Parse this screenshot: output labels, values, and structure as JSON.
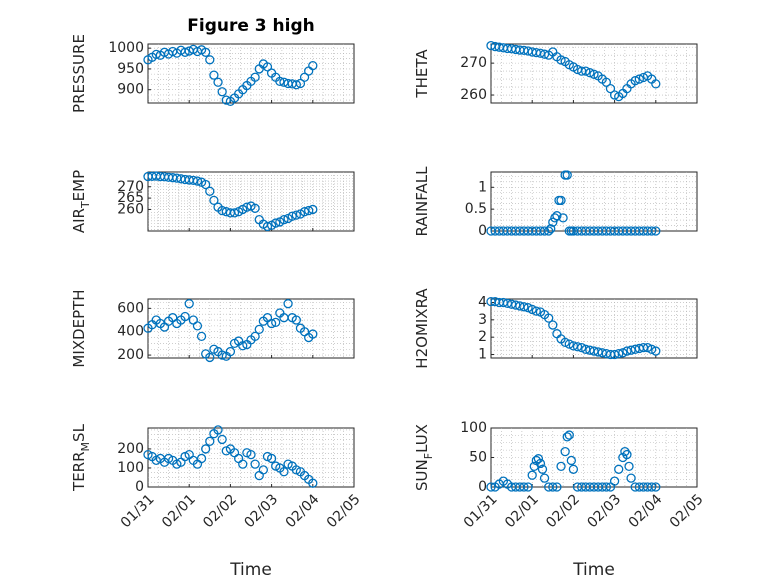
{
  "figure": {
    "title": "Figure 3 high",
    "marker_color": "#0072BD",
    "grid": true,
    "xlabel": "Time",
    "x_tick_labels": [
      "01/31",
      "02/01",
      "02/02",
      "02/03",
      "02/04",
      "02/05"
    ]
  },
  "chart_data": [
    {
      "type": "scatter",
      "ylabel": "PRESSURE",
      "xlim": [
        0,
        5
      ],
      "ylim": [
        868,
        1010
      ],
      "yticks": [
        900,
        950,
        1000
      ],
      "show_x_ticklabels": false,
      "x": [
        0,
        0.1,
        0.2,
        0.3,
        0.4,
        0.5,
        0.6,
        0.7,
        0.8,
        0.9,
        1.0,
        1.1,
        1.2,
        1.3,
        1.4,
        1.5,
        1.6,
        1.7,
        1.8,
        1.9,
        2.0,
        2.1,
        2.2,
        2.3,
        2.4,
        2.5,
        2.6,
        2.7,
        2.8,
        2.9,
        3.0,
        3.1,
        3.2,
        3.3,
        3.4,
        3.5,
        3.6,
        3.7,
        3.8,
        3.9,
        4.0
      ],
      "y": [
        972,
        978,
        985,
        983,
        990,
        986,
        992,
        988,
        995,
        990,
        993,
        997,
        992,
        996,
        990,
        972,
        935,
        918,
        895,
        875,
        872,
        880,
        890,
        900,
        910,
        920,
        930,
        950,
        962,
        955,
        940,
        930,
        920,
        918,
        915,
        914,
        912,
        915,
        930,
        945,
        958
      ]
    },
    {
      "type": "scatter",
      "ylabel": "THETA",
      "xlim": [
        0,
        5
      ],
      "ylim": [
        257.5,
        276
      ],
      "yticks": [
        260,
        270
      ],
      "show_x_ticklabels": false,
      "x": [
        0,
        0.1,
        0.2,
        0.3,
        0.4,
        0.5,
        0.6,
        0.7,
        0.8,
        0.9,
        1.0,
        1.1,
        1.2,
        1.3,
        1.4,
        1.5,
        1.6,
        1.7,
        1.8,
        1.9,
        2.0,
        2.1,
        2.2,
        2.3,
        2.4,
        2.5,
        2.6,
        2.7,
        2.8,
        2.9,
        3.0,
        3.1,
        3.2,
        3.3,
        3.4,
        3.5,
        3.6,
        3.7,
        3.8,
        3.9,
        4.0
      ],
      "y": [
        275.5,
        275.2,
        275,
        274.8,
        274.6,
        274.5,
        274.3,
        274.1,
        274,
        273.8,
        273.5,
        273.3,
        273.1,
        272.8,
        272.5,
        273.5,
        272,
        271,
        270.5,
        269.5,
        268.8,
        268,
        267.5,
        267.5,
        267,
        266.5,
        266,
        265,
        264,
        262,
        260,
        259.5,
        260.5,
        262,
        263.5,
        264.5,
        265,
        265.5,
        266,
        265,
        263.5
      ]
    },
    {
      "type": "scatter",
      "ylabel": "AIR_TEMP",
      "ylabel_sub": "T",
      "xlim": [
        0,
        5
      ],
      "ylim": [
        250.5,
        276.5
      ],
      "yticks": [
        260,
        265,
        270
      ],
      "show_x_ticklabels": false,
      "x": [
        0,
        0.1,
        0.2,
        0.3,
        0.4,
        0.5,
        0.6,
        0.7,
        0.8,
        0.9,
        1.0,
        1.1,
        1.2,
        1.3,
        1.4,
        1.5,
        1.6,
        1.7,
        1.8,
        1.9,
        2.0,
        2.1,
        2.2,
        2.3,
        2.4,
        2.5,
        2.6,
        2.7,
        2.8,
        2.9,
        3.0,
        3.1,
        3.2,
        3.3,
        3.4,
        3.5,
        3.6,
        3.7,
        3.8,
        3.9,
        4.0
      ],
      "y": [
        274.5,
        274.6,
        274.7,
        274.5,
        274.4,
        274.2,
        274,
        273.8,
        273.5,
        273.2,
        273,
        272.8,
        272.5,
        272,
        271,
        268,
        264,
        261,
        259.5,
        259,
        258.5,
        258.5,
        259,
        260,
        261,
        261.5,
        260.5,
        255.5,
        253.5,
        252.5,
        253,
        254,
        254.5,
        255.5,
        256,
        257,
        257.5,
        258,
        259,
        259.5,
        260
      ]
    },
    {
      "type": "scatter",
      "ylabel": "RAINFALL",
      "xlim": [
        0,
        5
      ],
      "ylim": [
        0,
        1.35
      ],
      "yticks": [
        0,
        0.5,
        1
      ],
      "show_x_ticklabels": false,
      "x": [
        0,
        0.1,
        0.2,
        0.3,
        0.4,
        0.5,
        0.6,
        0.7,
        0.8,
        0.9,
        1.0,
        1.1,
        1.2,
        1.3,
        1.4,
        1.45,
        1.5,
        1.55,
        1.6,
        1.65,
        1.7,
        1.75,
        1.8,
        1.85,
        1.9,
        1.95,
        2.0,
        2.1,
        2.2,
        2.3,
        2.4,
        2.5,
        2.6,
        2.7,
        2.8,
        2.9,
        3.0,
        3.1,
        3.2,
        3.3,
        3.4,
        3.5,
        3.6,
        3.7,
        3.8,
        3.9,
        4.0
      ],
      "y": [
        0,
        0,
        0,
        0,
        0,
        0,
        0,
        0,
        0,
        0,
        0,
        0,
        0,
        0,
        0,
        0.05,
        0.2,
        0.3,
        0.35,
        0.7,
        0.7,
        0.3,
        1.28,
        1.28,
        0,
        0,
        0,
        0,
        0,
        0,
        0,
        0,
        0,
        0,
        0,
        0,
        0,
        0,
        0,
        0,
        0,
        0,
        0,
        0,
        0,
        0,
        0
      ]
    },
    {
      "type": "scatter",
      "ylabel": "MIXDEPTH",
      "xlim": [
        0,
        5
      ],
      "ylim": [
        175,
        680
      ],
      "yticks": [
        200,
        400,
        600
      ],
      "show_x_ticklabels": false,
      "x": [
        0,
        0.1,
        0.2,
        0.3,
        0.4,
        0.5,
        0.6,
        0.7,
        0.8,
        0.9,
        1.0,
        1.1,
        1.2,
        1.3,
        1.4,
        1.5,
        1.6,
        1.7,
        1.8,
        1.9,
        2.0,
        2.1,
        2.2,
        2.3,
        2.4,
        2.5,
        2.6,
        2.7,
        2.8,
        2.9,
        3.0,
        3.1,
        3.2,
        3.3,
        3.4,
        3.5,
        3.6,
        3.7,
        3.8,
        3.9,
        4.0
      ],
      "y": [
        430,
        460,
        500,
        470,
        440,
        490,
        520,
        470,
        500,
        530,
        640,
        500,
        450,
        360,
        210,
        180,
        250,
        230,
        200,
        190,
        230,
        300,
        320,
        280,
        290,
        330,
        360,
        420,
        490,
        520,
        470,
        480,
        560,
        520,
        640,
        520,
        500,
        430,
        400,
        350,
        380
      ]
    },
    {
      "type": "scatter",
      "ylabel": "H2OMIXRA",
      "xlim": [
        0,
        5
      ],
      "ylim": [
        0.8,
        4.2
      ],
      "yticks": [
        1,
        2,
        3,
        4
      ],
      "show_x_ticklabels": false,
      "x": [
        0,
        0.1,
        0.2,
        0.3,
        0.4,
        0.5,
        0.6,
        0.7,
        0.8,
        0.9,
        1.0,
        1.1,
        1.2,
        1.3,
        1.4,
        1.5,
        1.6,
        1.7,
        1.8,
        1.9,
        2.0,
        2.1,
        2.2,
        2.3,
        2.4,
        2.5,
        2.6,
        2.7,
        2.8,
        2.9,
        3.0,
        3.1,
        3.2,
        3.3,
        3.4,
        3.5,
        3.6,
        3.7,
        3.8,
        3.9,
        4.0
      ],
      "y": [
        4.05,
        4.05,
        4.0,
        4.0,
        3.95,
        3.9,
        3.85,
        3.8,
        3.75,
        3.7,
        3.6,
        3.5,
        3.45,
        3.3,
        3.1,
        2.7,
        2.2,
        1.9,
        1.7,
        1.6,
        1.5,
        1.45,
        1.4,
        1.3,
        1.25,
        1.2,
        1.15,
        1.1,
        1.05,
        1.0,
        1.0,
        1.05,
        1.1,
        1.2,
        1.25,
        1.3,
        1.35,
        1.4,
        1.4,
        1.3,
        1.2
      ]
    },
    {
      "type": "scatter",
      "ylabel": "TERR_MSL",
      "ylabel_sub": "M",
      "xlim": [
        0,
        5
      ],
      "ylim": [
        0,
        310
      ],
      "yticks": [
        0,
        100,
        200
      ],
      "show_x_ticklabels": true,
      "x": [
        0,
        0.1,
        0.2,
        0.3,
        0.4,
        0.5,
        0.6,
        0.7,
        0.8,
        0.9,
        1.0,
        1.1,
        1.2,
        1.3,
        1.4,
        1.5,
        1.6,
        1.7,
        1.8,
        1.9,
        2.0,
        2.1,
        2.2,
        2.3,
        2.4,
        2.5,
        2.6,
        2.7,
        2.8,
        2.9,
        3.0,
        3.1,
        3.2,
        3.3,
        3.4,
        3.5,
        3.6,
        3.7,
        3.8,
        3.9,
        4.0
      ],
      "y": [
        170,
        160,
        140,
        150,
        130,
        150,
        140,
        120,
        130,
        160,
        170,
        140,
        120,
        150,
        200,
        240,
        280,
        300,
        250,
        190,
        200,
        180,
        150,
        120,
        180,
        170,
        120,
        60,
        90,
        160,
        150,
        110,
        100,
        80,
        120,
        110,
        90,
        80,
        60,
        40,
        20
      ]
    },
    {
      "type": "scatter",
      "ylabel": "SUN_FLUX",
      "ylabel_sub": "F",
      "xlim": [
        0,
        5
      ],
      "ylim": [
        0,
        100
      ],
      "yticks": [
        0,
        50,
        100
      ],
      "show_x_ticklabels": true,
      "x": [
        0,
        0.1,
        0.2,
        0.3,
        0.4,
        0.5,
        0.6,
        0.7,
        0.8,
        0.9,
        1.0,
        1.05,
        1.1,
        1.15,
        1.2,
        1.25,
        1.3,
        1.4,
        1.5,
        1.6,
        1.7,
        1.8,
        1.85,
        1.9,
        1.95,
        2.0,
        2.1,
        2.2,
        2.3,
        2.4,
        2.5,
        2.6,
        2.7,
        2.8,
        2.9,
        3.0,
        3.1,
        3.2,
        3.25,
        3.3,
        3.35,
        3.4,
        3.5,
        3.6,
        3.7,
        3.8,
        3.9,
        4.0
      ],
      "y": [
        0,
        0,
        5,
        10,
        5,
        0,
        0,
        0,
        0,
        0,
        20,
        35,
        45,
        48,
        40,
        30,
        15,
        0,
        0,
        0,
        35,
        60,
        85,
        88,
        45,
        30,
        0,
        0,
        0,
        0,
        0,
        0,
        0,
        0,
        0,
        10,
        30,
        50,
        60,
        55,
        35,
        15,
        0,
        0,
        0,
        0,
        0,
        0
      ]
    }
  ]
}
